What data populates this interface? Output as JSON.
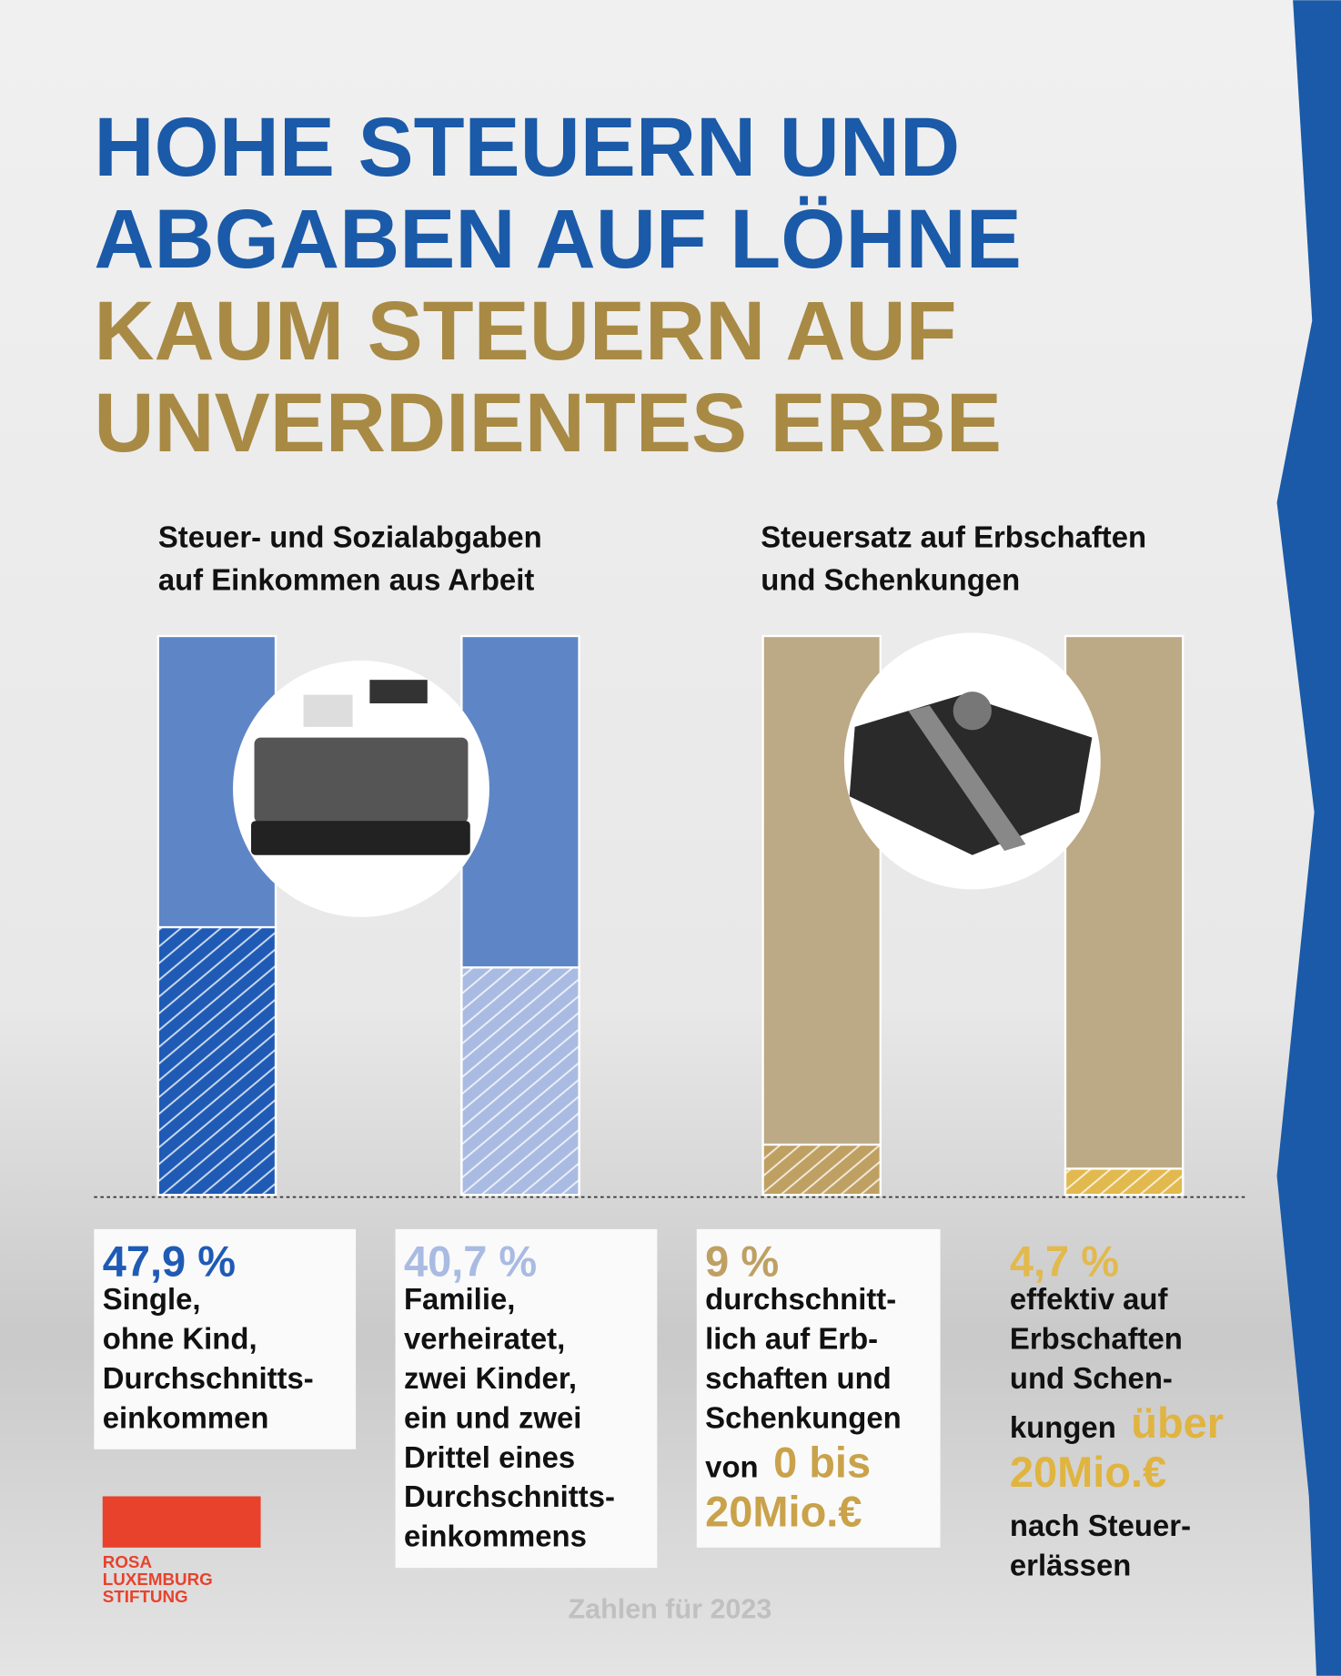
{
  "chart_data": {
    "type": "bar",
    "title_lines": [
      {
        "text": "HOHE STEUERN UND",
        "color": "#1a5aa8"
      },
      {
        "text": "ABGABEN AUF LÖHNE",
        "color": "#1a5aa8"
      },
      {
        "text": "KAUM STEUERN AUF",
        "color": "#a88a45"
      },
      {
        "text": "UNVERDIENTES ERBE",
        "color": "#a88a45"
      }
    ],
    "groups": [
      {
        "title": [
          "Steuer- und Sozialabgaben",
          "auf Einkommen aus Arbeit"
        ]
      },
      {
        "title": [
          "Steuersatz auf Erbschaften",
          "und Schenkungen"
        ]
      }
    ],
    "ylim": [
      0,
      100
    ],
    "values": [
      47.9,
      40.7,
      9,
      4.7
    ],
    "value_labels": [
      "47,9 %",
      "40,7 %",
      "9 %",
      "4,7 %"
    ],
    "colors": [
      "#1f5bb5",
      "#a9bbe2",
      "#bfa063",
      "#e2b94e"
    ],
    "background_colors": [
      "#5e86c6",
      "#5e86c6",
      "#bca985",
      "#bca985"
    ],
    "descriptions": [
      [
        [
          {
            "text": "Single,"
          }
        ],
        [
          {
            "text": "ohne Kind,"
          }
        ],
        [
          {
            "text": "Durchschnitts-"
          }
        ],
        [
          {
            "text": "einkommen"
          }
        ]
      ],
      [
        [
          {
            "text": "Familie,"
          }
        ],
        [
          {
            "text": "verheiratet,"
          }
        ],
        [
          {
            "text": "zwei Kinder,"
          }
        ],
        [
          {
            "text": "ein und zwei"
          }
        ],
        [
          {
            "text": "Drittel eines"
          }
        ],
        [
          {
            "text": "Durchschnitts-"
          }
        ],
        [
          {
            "text": "einkommens"
          }
        ]
      ],
      [
        [
          {
            "text": "durchschnitt-"
          }
        ],
        [
          {
            "text": "lich auf Erb-"
          }
        ],
        [
          {
            "text": "schaften und"
          }
        ],
        [
          {
            "text": "Schenkungen"
          }
        ],
        [
          {
            "text": "von"
          },
          {
            "text": "0 bis",
            "color": "#c9a24a"
          }
        ],
        [
          {
            "text": "20Mio.€",
            "color": "#c9a24a"
          }
        ]
      ],
      [
        [
          {
            "text": "effektiv auf"
          }
        ],
        [
          {
            "text": "Erbschaften"
          }
        ],
        [
          {
            "text": "und Schen-"
          }
        ],
        [
          {
            "text": "kungen"
          },
          {
            "text": "über",
            "color": "#e0b440"
          }
        ],
        [
          {
            "text": "20Mio.€",
            "color": "#e0b440"
          }
        ],
        [
          {
            "text": "nach Steuer-"
          }
        ],
        [
          {
            "text": "erlässen"
          }
        ]
      ]
    ],
    "logo": [
      "ROSA",
      "LUXEMBURG",
      "STIFTUNG"
    ],
    "footnote": "Zahlen für 2023"
  }
}
